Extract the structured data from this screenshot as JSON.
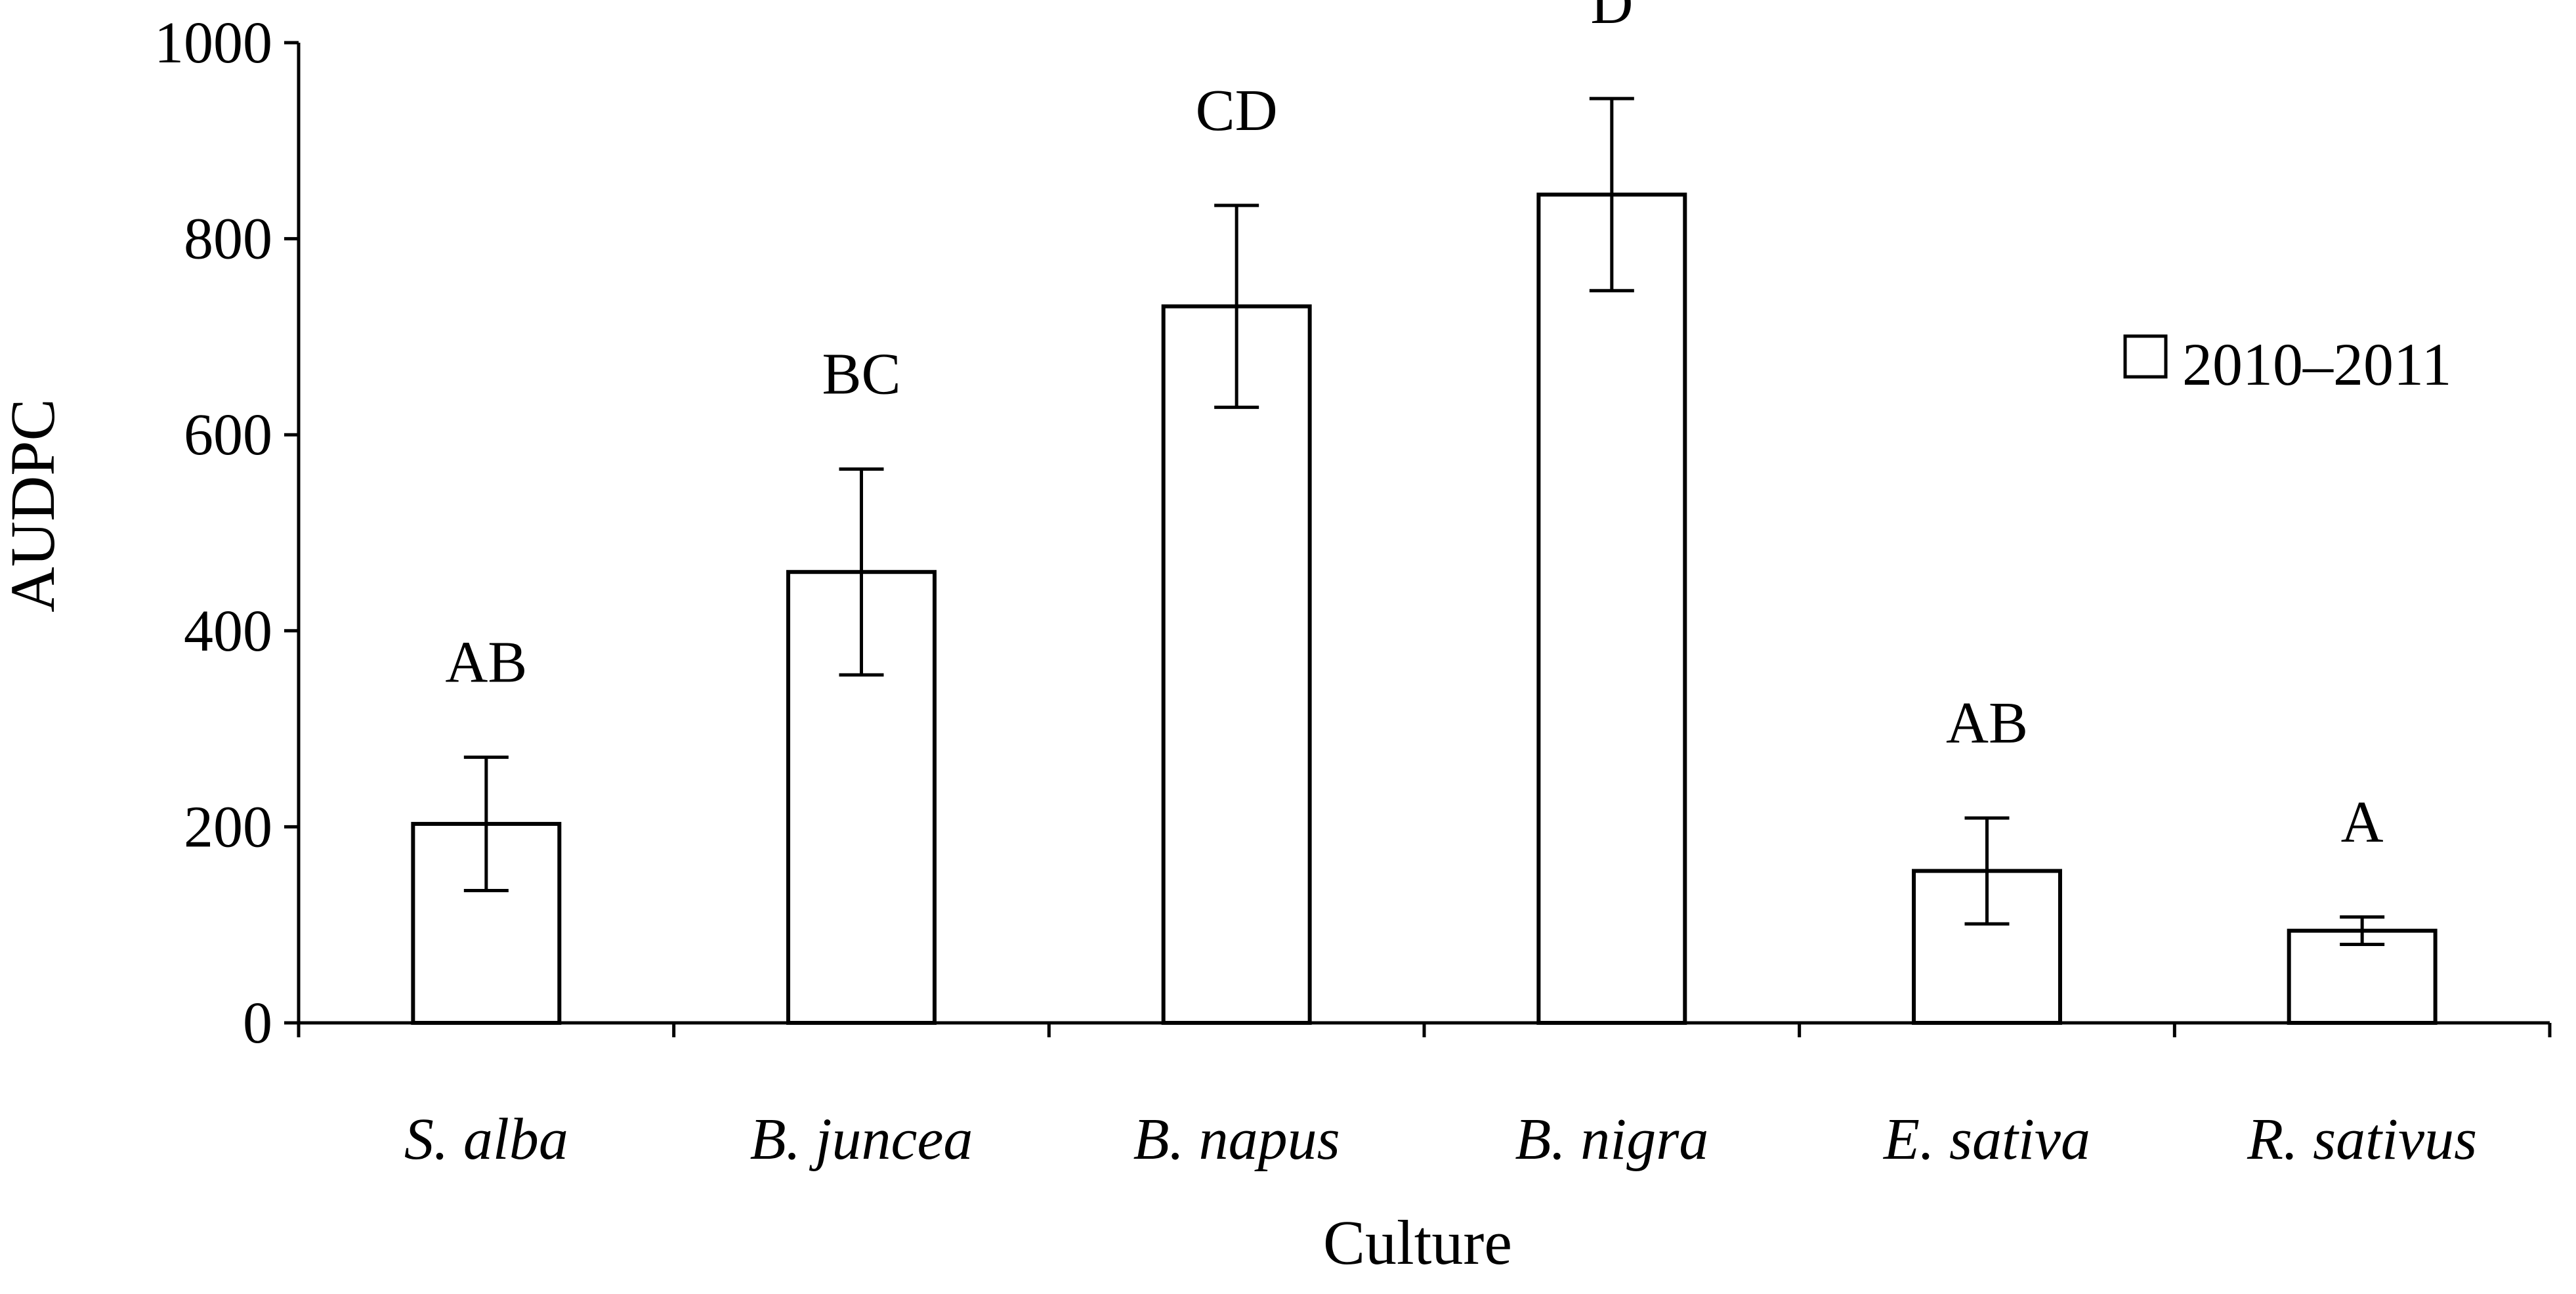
{
  "chart_data": {
    "type": "bar",
    "title": "",
    "xlabel": "Culture",
    "ylabel": "AUDPC",
    "ylim": [
      0,
      1000
    ],
    "yticks": [
      "0",
      "200",
      "400",
      "600",
      "800",
      "1000"
    ],
    "categories": [
      "S. alba",
      "B. juncea",
      "B. napus",
      "B. nigra",
      "E. sativa",
      "R. sativus"
    ],
    "series": [
      {
        "name": "2010–2011",
        "values": [
          203,
          460,
          731,
          845,
          155,
          94
        ],
        "errors": [
          68,
          105,
          103,
          98,
          54,
          14
        ],
        "significance": [
          "AB",
          "BC",
          "CD",
          "D",
          "AB",
          "A"
        ]
      }
    ],
    "legend": {
      "label": "2010–2011",
      "placement": "right"
    }
  }
}
